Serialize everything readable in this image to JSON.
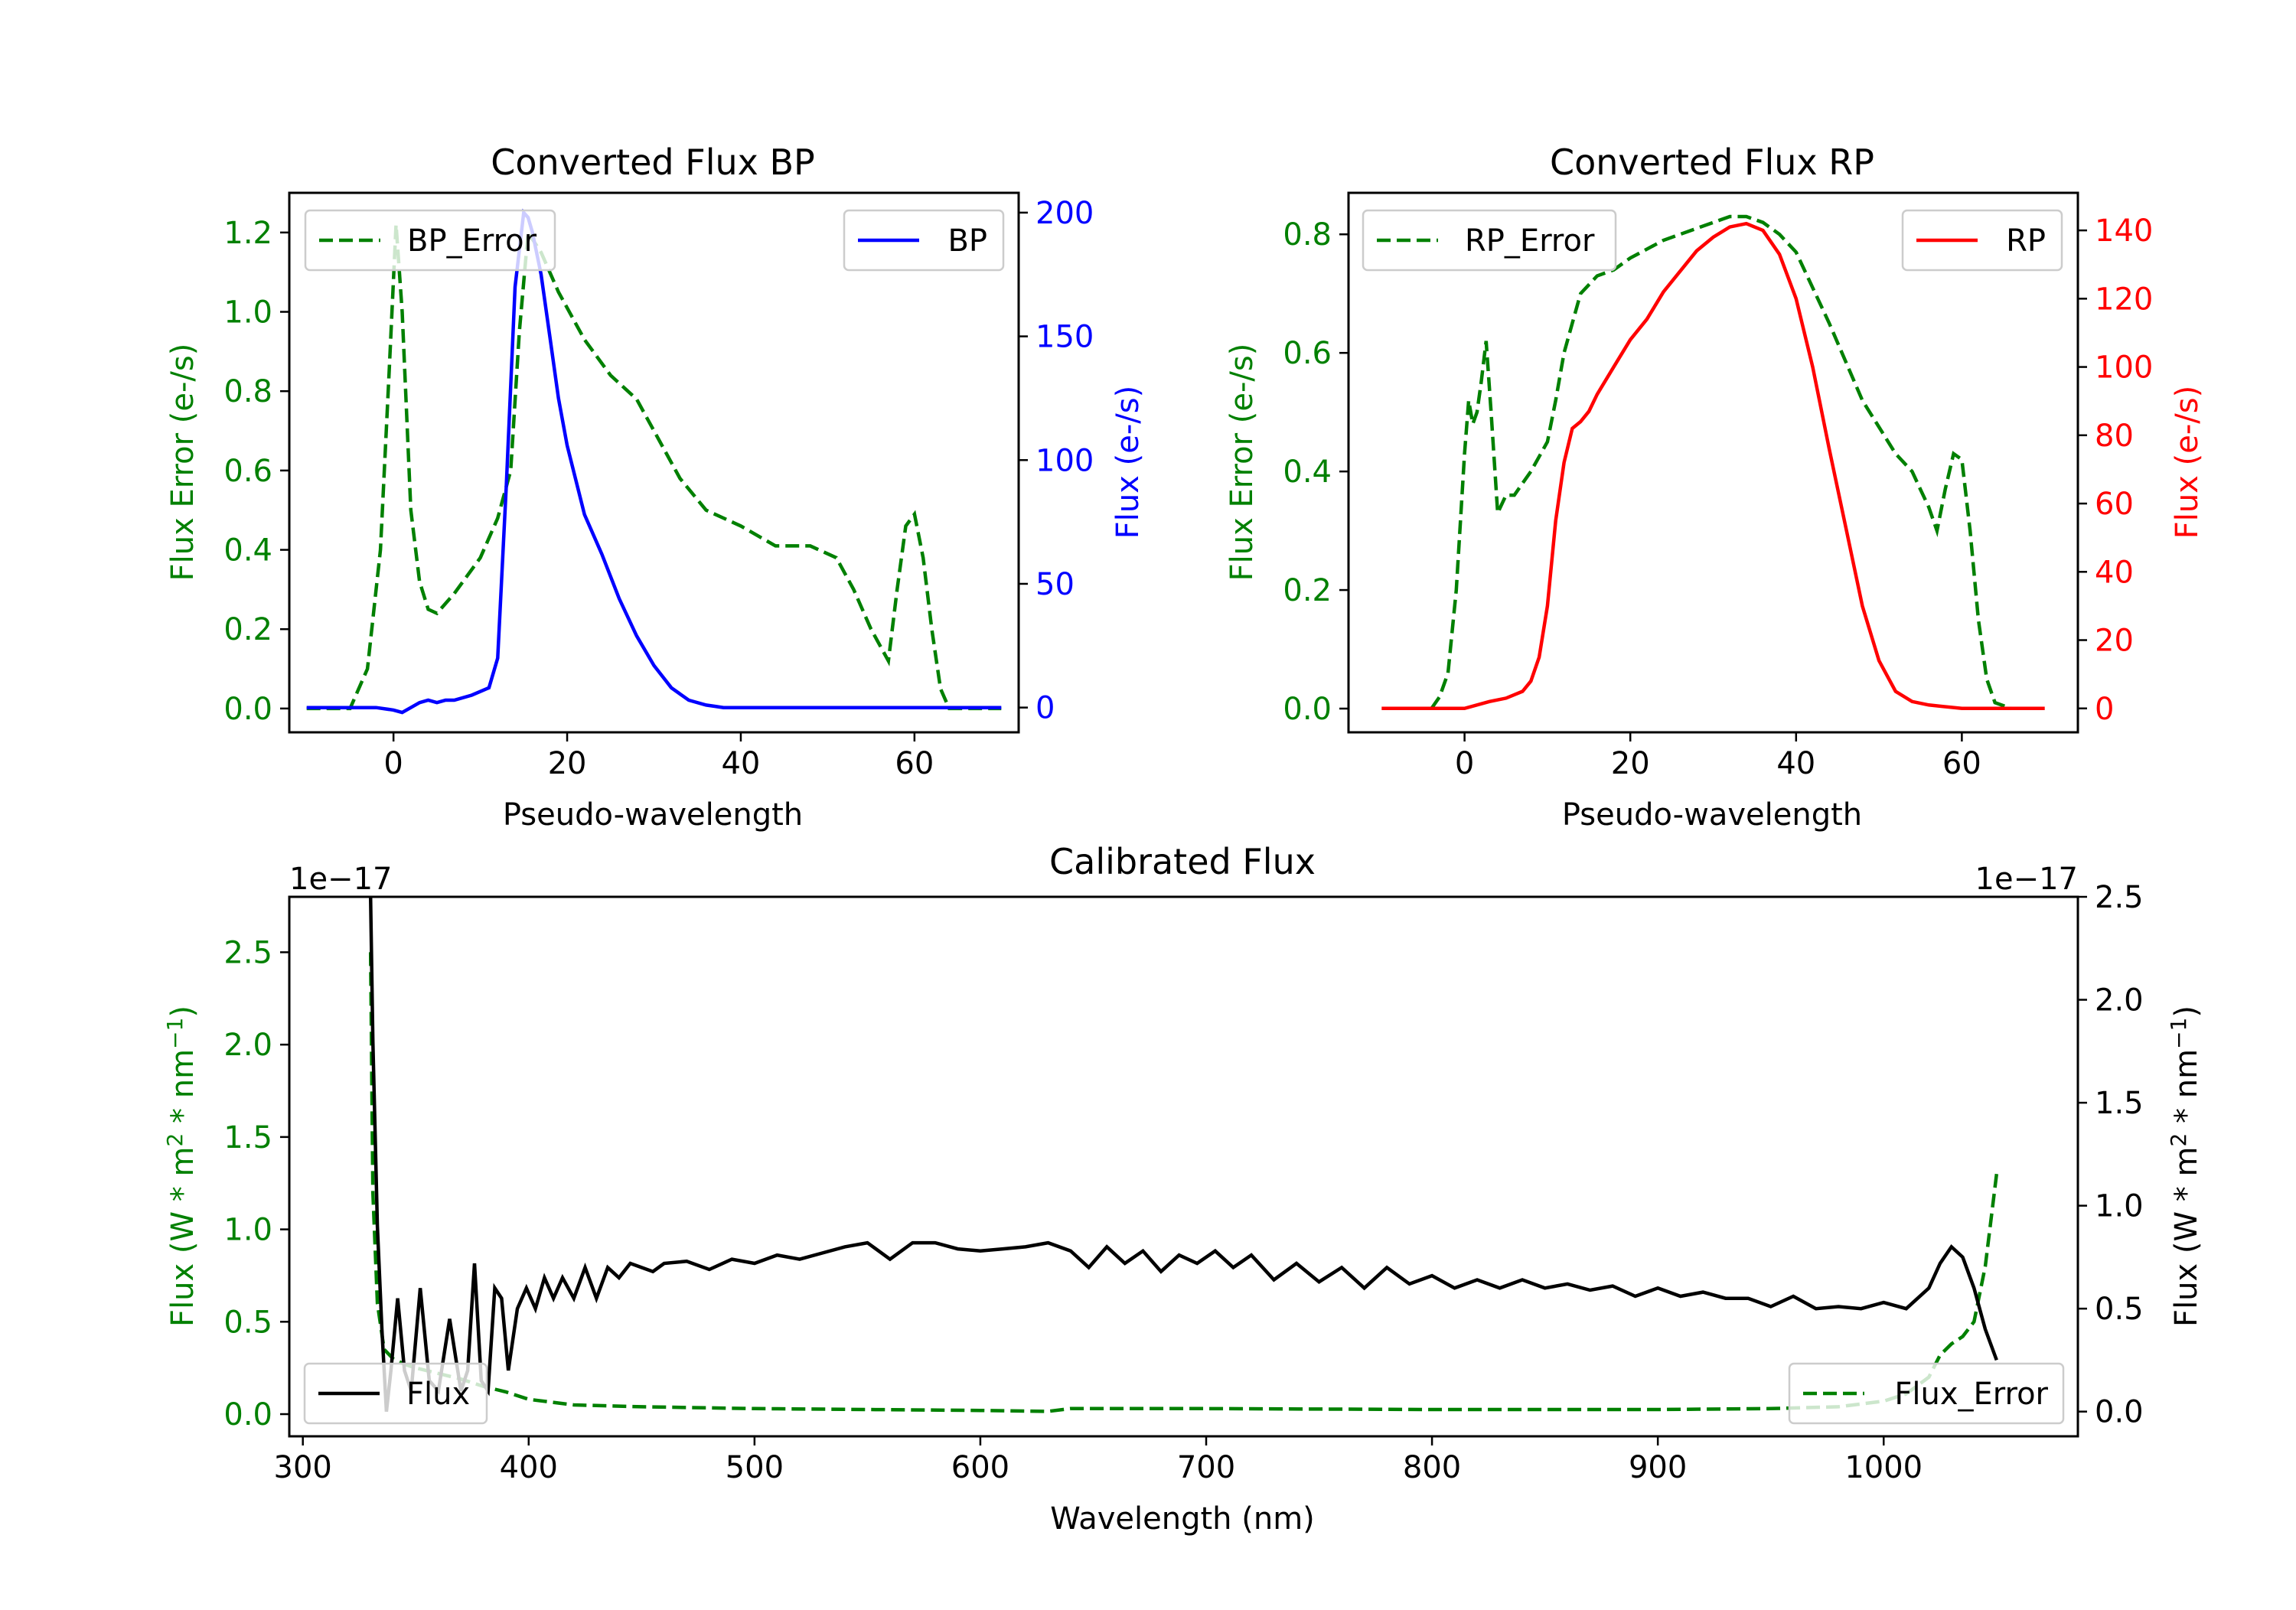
{
  "chart_data": [
    {
      "type": "line",
      "id": "bp",
      "title": "Converted Flux BP",
      "xlabel": "Pseudo-wavelength",
      "ylabel_left": "Flux Error (e-/s)",
      "ylabel_right": "Flux (e-/s)",
      "xlim": [
        -12,
        72
      ],
      "ylim_left": [
        -0.06,
        1.3
      ],
      "ylim_right": [
        -10,
        208
      ],
      "xticks": [
        0,
        20,
        40,
        60
      ],
      "xtick_labels": [
        "0",
        "20",
        "40",
        "60"
      ],
      "yticks_left": [
        0,
        0.2,
        0.4,
        0.6,
        0.8,
        1.0,
        1.2
      ],
      "ytick_labels_left": [
        "0.0",
        "0.2",
        "0.4",
        "0.6",
        "0.8",
        "1.0",
        "1.2"
      ],
      "yticks_right": [
        0,
        50,
        100,
        150,
        200
      ],
      "ytick_labels_right": [
        "0",
        "50",
        "100",
        "150",
        "200"
      ],
      "left_color": "#008000",
      "right_color": "#0000ff",
      "series": [
        {
          "name": "BP_Error",
          "axis": "left",
          "style": "dashed",
          "color": "#008000",
          "x": [
            -10,
            -5,
            -3,
            -1.5,
            -0.5,
            0.3,
            1,
            2,
            3,
            4,
            5,
            7,
            10,
            12,
            13.5,
            14.5,
            15.5,
            17,
            19,
            22,
            25,
            28,
            30,
            33,
            36,
            40,
            44,
            48,
            51,
            53,
            55,
            57,
            58,
            59,
            60,
            61,
            62,
            63,
            64,
            66,
            70
          ],
          "y": [
            0,
            0,
            0.1,
            0.4,
            0.85,
            1.22,
            1.0,
            0.5,
            0.32,
            0.25,
            0.24,
            0.29,
            0.38,
            0.48,
            0.6,
            0.95,
            1.2,
            1.15,
            1.05,
            0.93,
            0.84,
            0.78,
            0.7,
            0.58,
            0.5,
            0.46,
            0.41,
            0.41,
            0.38,
            0.3,
            0.2,
            0.12,
            0.3,
            0.46,
            0.49,
            0.38,
            0.2,
            0.05,
            0.0,
            0,
            0
          ]
        },
        {
          "name": "BP",
          "axis": "right",
          "style": "solid",
          "color": "#0000ff",
          "x": [
            -10,
            -5,
            -2,
            0,
            1,
            2,
            3,
            4,
            5,
            6,
            7,
            9,
            11,
            12,
            13,
            14,
            15,
            15.5,
            16,
            17,
            18,
            19,
            20,
            22,
            24,
            26,
            28,
            30,
            32,
            34,
            36,
            37,
            38,
            40,
            42,
            46,
            50,
            60,
            70
          ],
          "y": [
            0,
            0,
            0,
            -1,
            -2,
            0,
            2,
            3,
            2,
            3,
            3,
            5,
            8,
            20,
            90,
            170,
            200,
            198,
            192,
            175,
            150,
            125,
            106,
            78,
            62,
            44,
            29,
            17,
            8,
            3,
            1,
            0.5,
            0,
            0,
            0,
            0,
            0,
            0,
            0
          ]
        }
      ],
      "legend": [
        {
          "label": "BP_Error",
          "position": "upper-left"
        },
        {
          "label": "BP",
          "position": "upper-right"
        }
      ]
    },
    {
      "type": "line",
      "id": "rp",
      "title": "Converted Flux RP",
      "xlabel": "Pseudo-wavelength",
      "ylabel_left": "Flux Error (e-/s)",
      "ylabel_right": "Flux (e-/s)",
      "xlim": [
        -14,
        74
      ],
      "ylim_left": [
        -0.04,
        0.87
      ],
      "ylim_right": [
        -7,
        151
      ],
      "xticks": [
        0,
        20,
        40,
        60
      ],
      "xtick_labels": [
        "0",
        "20",
        "40",
        "60"
      ],
      "yticks_left": [
        0,
        0.2,
        0.4,
        0.6,
        0.8
      ],
      "ytick_labels_left": [
        "0.0",
        "0.2",
        "0.4",
        "0.6",
        "0.8"
      ],
      "yticks_right": [
        0,
        20,
        40,
        60,
        80,
        100,
        120,
        140
      ],
      "ytick_labels_right": [
        "0",
        "20",
        "40",
        "60",
        "80",
        "100",
        "120",
        "140"
      ],
      "left_color": "#008000",
      "right_color": "#ff0000",
      "series": [
        {
          "name": "RP_Error",
          "axis": "left",
          "style": "dashed",
          "color": "#008000",
          "x": [
            -4,
            -3,
            -2,
            -1,
            0,
            0.5,
            1,
            1.5,
            2,
            2.6,
            3.2,
            4,
            5,
            6,
            7,
            8,
            10,
            11,
            12,
            13,
            14,
            16,
            18,
            20,
            24,
            28,
            32,
            34,
            36,
            38,
            40,
            44,
            48,
            52,
            54,
            55,
            56,
            57,
            58,
            59,
            60,
            61,
            62,
            63,
            64,
            66
          ],
          "y": [
            0,
            0.02,
            0.06,
            0.2,
            0.43,
            0.52,
            0.48,
            0.5,
            0.55,
            0.62,
            0.5,
            0.33,
            0.36,
            0.36,
            0.38,
            0.4,
            0.45,
            0.52,
            0.6,
            0.65,
            0.7,
            0.73,
            0.74,
            0.76,
            0.79,
            0.81,
            0.83,
            0.83,
            0.82,
            0.8,
            0.77,
            0.65,
            0.52,
            0.43,
            0.4,
            0.37,
            0.34,
            0.3,
            0.37,
            0.43,
            0.42,
            0.3,
            0.15,
            0.05,
            0.01,
            0
          ]
        },
        {
          "name": "RP",
          "axis": "right",
          "style": "solid",
          "color": "#ff0000",
          "x": [
            -10,
            -5,
            0,
            3,
            5,
            7,
            8,
            9,
            10,
            11,
            12,
            13,
            14,
            15,
            16,
            18,
            20,
            22,
            24,
            26,
            28,
            30,
            32,
            34,
            36,
            38,
            40,
            42,
            44,
            46,
            48,
            50,
            52,
            54,
            56,
            60,
            65,
            70
          ],
          "y": [
            0,
            0,
            0,
            2,
            3,
            5,
            8,
            15,
            30,
            55,
            72,
            82,
            84,
            87,
            92,
            100,
            108,
            114,
            122,
            128,
            134,
            138,
            141,
            142,
            140,
            133,
            120,
            100,
            76,
            53,
            30,
            14,
            5,
            2,
            1,
            0,
            0,
            0
          ]
        }
      ],
      "legend": [
        {
          "label": "RP_Error",
          "position": "upper-left"
        },
        {
          "label": "RP",
          "position": "upper-right"
        }
      ]
    },
    {
      "type": "line",
      "id": "calibrated",
      "title": "Calibrated Flux",
      "xlabel": "Wavelength (nm)",
      "ylabel_left_main": "Flux (W * m",
      "ylabel_left_sup1": "2",
      "ylabel_left_mid": " * nm",
      "ylabel_left_sup2": "−1",
      "ylabel_left_end": ")",
      "ylabel_right_main": "Flux (W * m",
      "ylabel_right_sup1": "2",
      "ylabel_right_mid": " * nm",
      "ylabel_right_sup2": "−1",
      "ylabel_right_end": ")",
      "left_offset_label": "1e−17",
      "right_offset_label": "1e−17",
      "xlim": [
        294,
        1086
      ],
      "ylim_left": [
        -0.12,
        2.8
      ],
      "ylim_right": [
        -0.12,
        2.5
      ],
      "xticks": [
        300,
        400,
        500,
        600,
        700,
        800,
        900,
        1000
      ],
      "xtick_labels": [
        "300",
        "400",
        "500",
        "600",
        "700",
        "800",
        "900",
        "1000"
      ],
      "yticks_left": [
        0,
        0.5,
        1.0,
        1.5,
        2.0,
        2.5
      ],
      "ytick_labels_left": [
        "0.0",
        "0.5",
        "1.0",
        "1.5",
        "2.0",
        "2.5"
      ],
      "yticks_right": [
        0,
        0.5,
        1.0,
        1.5,
        2.0,
        2.5
      ],
      "ytick_labels_right": [
        "0.0",
        "0.5",
        "1.0",
        "1.5",
        "2.0",
        "2.5"
      ],
      "left_color": "#008000",
      "right_color": "#000000",
      "series": [
        {
          "name": "Flux_Error",
          "axis": "left",
          "style": "dashed",
          "color": "#008000",
          "x": [
            330,
            331,
            333,
            336,
            340,
            345,
            350,
            360,
            370,
            380,
            390,
            400,
            420,
            450,
            500,
            550,
            600,
            630,
            640,
            700,
            800,
            900,
            950,
            980,
            1000,
            1010,
            1020,
            1025,
            1030,
            1035,
            1040,
            1045,
            1050
          ],
          "y": [
            2.5,
            1.2,
            0.6,
            0.35,
            0.3,
            0.27,
            0.25,
            0.22,
            0.19,
            0.15,
            0.12,
            0.08,
            0.05,
            0.04,
            0.03,
            0.025,
            0.02,
            0.015,
            0.03,
            0.03,
            0.025,
            0.025,
            0.03,
            0.04,
            0.07,
            0.11,
            0.2,
            0.32,
            0.38,
            0.42,
            0.5,
            0.8,
            1.3
          ]
        },
        {
          "name": "Flux",
          "axis": "right",
          "style": "solid",
          "color": "#000000",
          "x": [
            330,
            331,
            333,
            335,
            337,
            339,
            342,
            345,
            348,
            352,
            356,
            360,
            365,
            370,
            373,
            376,
            379,
            382,
            385,
            388,
            391,
            395,
            399,
            403,
            407,
            411,
            415,
            420,
            425,
            430,
            435,
            440,
            445,
            450,
            455,
            460,
            470,
            480,
            490,
            500,
            510,
            520,
            530,
            540,
            550,
            560,
            570,
            580,
            590,
            600,
            610,
            620,
            630,
            640,
            648,
            656,
            664,
            672,
            680,
            688,
            696,
            704,
            712,
            720,
            730,
            740,
            750,
            760,
            770,
            780,
            790,
            800,
            810,
            820,
            830,
            840,
            850,
            860,
            870,
            880,
            890,
            900,
            910,
            920,
            930,
            940,
            950,
            960,
            970,
            980,
            990,
            1000,
            1010,
            1020,
            1025,
            1030,
            1035,
            1040,
            1045,
            1050
          ],
          "y": [
            2.5,
            1.8,
            0.9,
            0.4,
            0.0,
            0.2,
            0.55,
            0.2,
            0.1,
            0.6,
            0.15,
            0.1,
            0.45,
            0.1,
            0.2,
            0.72,
            0.15,
            0.1,
            0.6,
            0.55,
            0.2,
            0.5,
            0.6,
            0.5,
            0.65,
            0.55,
            0.65,
            0.55,
            0.7,
            0.55,
            0.7,
            0.65,
            0.72,
            0.7,
            0.68,
            0.72,
            0.73,
            0.69,
            0.74,
            0.72,
            0.76,
            0.74,
            0.77,
            0.8,
            0.82,
            0.74,
            0.82,
            0.82,
            0.79,
            0.78,
            0.79,
            0.8,
            0.82,
            0.78,
            0.7,
            0.8,
            0.72,
            0.78,
            0.68,
            0.76,
            0.72,
            0.78,
            0.7,
            0.76,
            0.64,
            0.72,
            0.63,
            0.7,
            0.6,
            0.7,
            0.62,
            0.66,
            0.6,
            0.64,
            0.6,
            0.64,
            0.6,
            0.62,
            0.59,
            0.61,
            0.56,
            0.6,
            0.56,
            0.58,
            0.55,
            0.55,
            0.51,
            0.56,
            0.5,
            0.51,
            0.5,
            0.53,
            0.5,
            0.6,
            0.72,
            0.8,
            0.75,
            0.6,
            0.4,
            0.25
          ]
        }
      ],
      "legend": [
        {
          "label": "Flux",
          "position": "lower-left"
        },
        {
          "label": "Flux_Error",
          "position": "lower-right"
        }
      ]
    }
  ]
}
